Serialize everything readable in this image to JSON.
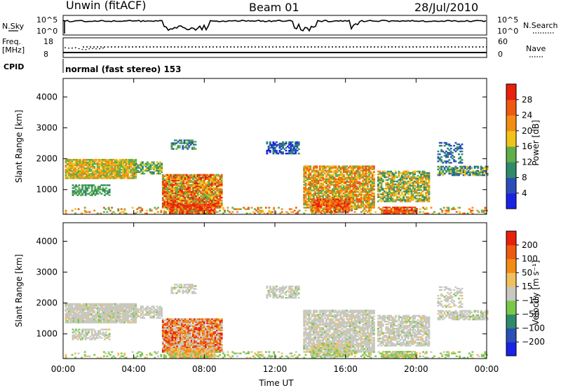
{
  "header": {
    "station": "Unwin (fitACF)",
    "beam": "Beam 01",
    "date": "28/Jul/2010"
  },
  "summary_labels": {
    "nsky": "N.Sky",
    "nsky_top": "10^5",
    "nsky_bottom": "10^0",
    "nsearch": "N.Search",
    "nsearch_top": "10^5",
    "nsearch_bottom": "10^0",
    "freq": "Freq.",
    "freq_unit": "[MHz]",
    "freq_top": "18",
    "freq_bottom": "8",
    "nave": "Nave",
    "nave_top": "60",
    "nave_bottom": "0",
    "cpid": "CPID",
    "cpid_text": "normal (fast stereo) 153"
  },
  "colors": {
    "power_scale": [
      "#1a22e6",
      "#2b4fb8",
      "#2f8a6a",
      "#5fae4a",
      "#f2c21a",
      "#f28c14",
      "#ee5a10",
      "#e8200c"
    ],
    "velocity_scale": [
      "#e8200c",
      "#ee5a10",
      "#f28c14",
      "#f0c060",
      "#c8c8c0",
      "#7ac84a",
      "#2f8a6a",
      "#2b4fb8",
      "#1a22e6"
    ]
  },
  "chart_data": [
    {
      "type": "heatmap",
      "name": "power",
      "ylabel": "Slant Range [km]",
      "ylim": [
        200,
        4600
      ],
      "yticks": [
        "1000",
        "2000",
        "3000",
        "4000"
      ],
      "x": [
        "00:00",
        "04:00",
        "08:00",
        "12:00",
        "16:00",
        "20:00",
        "00:00"
      ],
      "colorbar_label": "Power [dB]",
      "colorbar_ticks": [
        "4",
        "8",
        "12",
        "16",
        "20",
        "24",
        "28"
      ]
    },
    {
      "type": "heatmap",
      "name": "velocity",
      "ylabel": "Slant Range [km]",
      "ylim": [
        200,
        4600
      ],
      "yticks": [
        "1000",
        "2000",
        "3000",
        "4000"
      ],
      "x": [
        "00:00",
        "04:00",
        "08:00",
        "12:00",
        "16:00",
        "20:00",
        "00:00"
      ],
      "xlabel": "Time UT",
      "colorbar_label": "Velocity [m s⁻¹]",
      "colorbar_ticks": [
        "200",
        "100",
        "50",
        "15",
        "−15",
        "−50",
        "−100",
        "−200"
      ]
    }
  ]
}
